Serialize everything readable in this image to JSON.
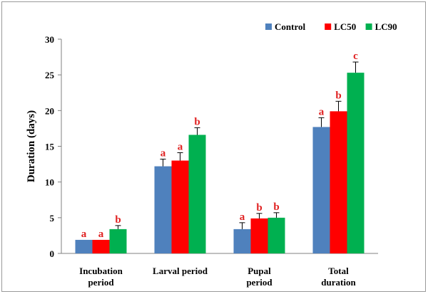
{
  "chart_data": {
    "type": "bar",
    "ylabel": "Duration (days)",
    "xlabel": "",
    "ylim": [
      0,
      30
    ],
    "yticks": [
      0,
      5,
      10,
      15,
      20,
      25,
      30
    ],
    "grid": false,
    "legend_position": "top-right",
    "categories": [
      [
        "Incubation",
        "period"
      ],
      [
        "Larval period"
      ],
      [
        "Pupal",
        "period"
      ],
      [
        "Total",
        "duration"
      ]
    ],
    "series": [
      {
        "name": "Control",
        "color": "#4F81BD",
        "values": [
          1.9,
          12.2,
          3.4,
          17.7
        ],
        "errors": [
          0.0,
          1.0,
          0.9,
          1.3
        ],
        "labels": [
          "a",
          "a",
          "a",
          "a"
        ]
      },
      {
        "name": "LC50",
        "color": "#FF0000",
        "values": [
          1.9,
          13.0,
          4.9,
          19.9
        ],
        "errors": [
          0.0,
          1.1,
          0.7,
          1.4
        ],
        "labels": [
          "a",
          "a",
          "b",
          "b"
        ]
      },
      {
        "name": "LC90",
        "color": "#00B050",
        "values": [
          3.4,
          16.6,
          5.0,
          25.3
        ],
        "errors": [
          0.5,
          1.0,
          0.7,
          1.5
        ],
        "labels": [
          "b",
          "b",
          "b",
          "c"
        ]
      }
    ],
    "label_color": "#E02020"
  }
}
